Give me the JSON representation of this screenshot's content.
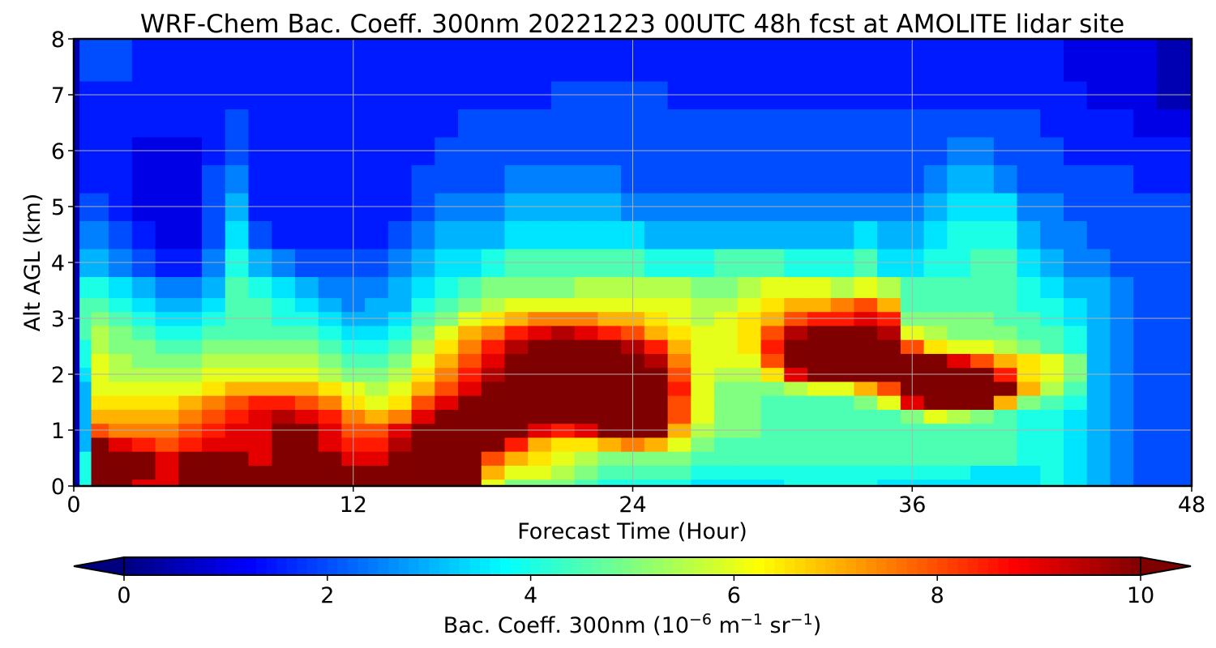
{
  "chart_data": {
    "type": "heatmap",
    "title": "WRF-Chem Bac. Coeff. 300nm  20221223 00UTC 48h fcst at AMOLITE lidar site",
    "xlabel": "Forecast Time (Hour)",
    "ylabel": "Alt AGL (km)",
    "xlim": [
      0,
      48
    ],
    "ylim": [
      0,
      8
    ],
    "xticks": [
      "0",
      "12",
      "24",
      "36",
      "48"
    ],
    "yticks": [
      "0",
      "1",
      "2",
      "3",
      "4",
      "5",
      "6",
      "7",
      "8"
    ],
    "grid": true,
    "colormap": "jet",
    "colorbar": {
      "orientation": "horizontal",
      "position": "bottom",
      "range": [
        0,
        10
      ],
      "extend": "both",
      "ticks": [
        "0",
        "2",
        "4",
        "6",
        "8",
        "10"
      ],
      "label_prefix": "Bac. Coeff. 300nm  (10",
      "label_exp1": "−6",
      "label_mid": " m",
      "label_exp2": "−1",
      "label_mid2": " sr",
      "label_exp3": "−1",
      "label_suffix": ")",
      "extend_low_color": "#00007f",
      "extend_high_color": "#7f0000"
    },
    "x": [
      0,
      0.5,
      1,
      2,
      3,
      4,
      5,
      6,
      7,
      8,
      9,
      10,
      11,
      12,
      13,
      14,
      15,
      16,
      17,
      18,
      19,
      20,
      21,
      22,
      23,
      24,
      25,
      26,
      27,
      28,
      29,
      30,
      31,
      32,
      33,
      34,
      35,
      36,
      37,
      38,
      39,
      40,
      41,
      42,
      43,
      44,
      45,
      46,
      47,
      48
    ],
    "y": [
      0,
      0.25,
      0.5,
      0.75,
      1,
      1.25,
      1.5,
      1.75,
      2,
      2.25,
      2.5,
      2.75,
      3,
      3.25,
      3.5,
      4,
      4.5,
      5,
      5.5,
      6,
      6.5,
      7,
      7.5,
      8
    ],
    "z": [
      [
        0.5,
        4,
        11,
        10,
        9,
        9,
        11,
        11,
        10,
        10,
        10,
        10,
        11,
        11,
        11,
        10,
        10,
        11,
        11,
        6,
        5,
        5,
        5,
        4.5,
        4,
        4,
        4,
        4,
        3.5,
        3.5,
        3.5,
        3.5,
        4,
        4,
        4,
        4,
        3.5,
        3.5,
        3.5,
        3.5,
        3.5,
        3.5,
        3.5,
        4,
        3.5,
        3,
        2.5,
        2,
        2,
        2
      ],
      [
        0.5,
        4,
        11,
        11,
        10,
        9,
        11,
        11,
        10,
        10,
        10,
        10,
        11,
        10,
        10,
        10,
        11,
        11,
        11,
        7,
        6,
        6,
        5.5,
        5,
        4.5,
        4.5,
        4.5,
        4.5,
        4,
        4,
        4,
        4,
        4,
        4,
        4,
        4,
        4,
        4,
        4,
        4,
        3.5,
        3.5,
        3.5,
        4,
        3.5,
        3,
        2.5,
        2,
        2,
        2
      ],
      [
        0.5,
        4,
        11,
        10,
        10,
        9,
        10,
        11,
        10,
        9,
        10,
        10,
        10,
        9,
        9,
        10,
        11,
        11,
        11,
        8,
        7,
        6.5,
        6,
        5.5,
        5,
        5,
        5,
        5,
        4.5,
        4.5,
        4.5,
        4.5,
        4.5,
        4.5,
        4.5,
        4.5,
        4.5,
        4.5,
        4.5,
        4.5,
        4.5,
        4.5,
        4,
        4,
        3.5,
        3,
        2.5,
        2,
        2,
        2
      ],
      [
        0.5,
        3,
        10,
        9,
        8.5,
        8,
        8.5,
        9,
        9,
        9,
        10,
        10,
        9,
        8.5,
        8.5,
        9.5,
        11,
        11,
        11,
        10,
        8.5,
        7,
        6.5,
        6.5,
        7,
        7.5,
        7,
        6,
        5,
        4.5,
        4.5,
        4.5,
        4.5,
        4.5,
        4.5,
        4.5,
        4.5,
        4.5,
        4.5,
        4.5,
        4.5,
        4.5,
        4,
        4,
        3.5,
        3,
        2.5,
        2,
        2,
        2
      ],
      [
        0.5,
        3,
        8,
        7.5,
        7.5,
        7.5,
        8,
        8.5,
        9,
        9,
        10,
        10,
        9,
        8,
        8,
        9,
        11,
        11,
        11,
        11,
        10,
        9,
        8.5,
        9,
        11,
        11,
        10,
        7,
        5.5,
        5,
        5,
        4.5,
        4.5,
        4.5,
        4.5,
        4.5,
        4.5,
        4.5,
        4.5,
        4.5,
        4.5,
        4.5,
        4,
        4,
        3.5,
        3,
        2.5,
        2,
        2,
        2
      ],
      [
        0.5,
        3,
        7,
        7,
        7,
        7,
        7.5,
        8,
        8.5,
        9,
        9.5,
        9,
        8.5,
        7.5,
        7,
        7.5,
        9,
        10,
        11,
        11,
        11,
        11,
        11,
        11,
        11,
        11,
        11,
        8,
        6,
        5,
        5,
        4.5,
        4.5,
        4.5,
        4.5,
        4.5,
        4.5,
        5,
        6,
        5.5,
        5,
        4.5,
        4,
        4,
        3.5,
        3,
        2.5,
        2,
        2,
        2
      ],
      [
        0.5,
        3,
        6.5,
        6.5,
        6.5,
        6.5,
        7,
        7.5,
        8,
        8.5,
        8.5,
        8,
        7.5,
        6.5,
        6,
        6.5,
        8,
        9,
        10,
        11,
        11,
        11,
        11,
        11,
        11,
        11,
        11,
        8,
        6,
        5,
        5,
        4.5,
        4.5,
        4.5,
        4.5,
        5,
        6,
        9,
        10,
        10,
        10,
        7,
        5,
        4.5,
        4,
        3,
        2.5,
        2,
        2,
        2
      ],
      [
        0.5,
        3,
        6,
        6,
        6,
        6,
        6,
        6.5,
        7,
        7,
        7,
        7,
        6.5,
        6,
        5.5,
        6,
        7,
        8,
        9,
        10,
        11,
        11,
        11,
        11,
        11,
        11,
        11,
        8.5,
        6,
        5,
        5,
        5,
        5.5,
        6,
        6,
        7,
        8,
        11,
        11,
        11,
        11,
        10,
        7,
        5.5,
        4.5,
        3,
        2.5,
        2,
        2,
        2
      ],
      [
        0.5,
        3.5,
        6,
        5.5,
        5.5,
        5.5,
        5.5,
        6,
        6,
        6,
        6,
        6,
        5.5,
        5,
        5,
        5.5,
        6.5,
        7.5,
        8.5,
        9.5,
        10.5,
        11,
        11,
        11,
        11,
        11,
        10,
        8,
        6,
        5.5,
        5.5,
        6.5,
        9,
        10,
        11,
        11,
        11,
        11,
        11,
        11,
        10.5,
        8.5,
        6.5,
        6,
        5,
        3,
        2.5,
        2,
        2,
        2
      ],
      [
        0.5,
        4,
        6,
        5.5,
        5,
        5,
        5,
        5.5,
        5.5,
        5.5,
        5.5,
        5.5,
        5,
        4.5,
        4.5,
        5,
        6,
        7,
        8,
        9,
        10,
        10.5,
        11,
        11,
        11,
        11,
        9.5,
        7.5,
        6,
        6,
        6,
        8,
        10,
        11,
        11,
        11,
        11,
        11,
        10,
        9,
        8,
        7,
        6.5,
        6,
        5,
        3,
        2.5,
        2,
        2,
        2
      ],
      [
        0.5,
        4,
        5.5,
        5,
        5,
        4.5,
        4.5,
        5,
        5,
        5,
        5,
        5,
        4.5,
        4,
        4,
        4.5,
        5.5,
        6.5,
        7.5,
        8.5,
        9.5,
        10,
        10.5,
        10.5,
        10,
        9.5,
        8.5,
        7,
        6,
        6,
        6.5,
        8.5,
        10,
        11,
        11,
        11,
        10.5,
        8,
        6.5,
        6,
        6,
        5.5,
        5,
        4.5,
        4,
        3,
        2.5,
        2,
        2,
        2
      ],
      [
        0.5,
        4.5,
        5.5,
        5,
        4.5,
        4,
        4,
        4.5,
        4.5,
        4.5,
        4.5,
        4.5,
        4,
        3.5,
        3.5,
        4,
        5,
        6,
        7,
        7.5,
        8.5,
        9,
        9.5,
        9,
        8.5,
        8,
        7,
        6.5,
        6,
        6,
        6.5,
        8,
        9.5,
        10,
        10,
        10,
        9.5,
        6,
        5.5,
        5,
        5,
        5,
        4.5,
        4.5,
        4,
        3,
        2.5,
        2,
        2,
        2
      ],
      [
        0.5,
        4.5,
        5,
        4.5,
        4,
        3.5,
        3.5,
        4,
        4.5,
        4.5,
        4,
        4,
        3.5,
        3,
        3,
        3.5,
        4.5,
        5,
        6,
        6.5,
        7,
        7.5,
        7.5,
        7.5,
        7,
        7,
        6.5,
        6,
        5.5,
        6,
        6.5,
        7,
        8,
        8.5,
        8.5,
        9,
        8.5,
        5,
        5,
        5,
        5,
        4.5,
        4.5,
        4,
        3.5,
        3,
        2.5,
        2,
        2,
        2
      ],
      [
        0.5,
        4.5,
        4.5,
        4,
        3.5,
        3,
        3,
        3.5,
        4.5,
        4.5,
        4,
        3.5,
        3,
        2.5,
        3,
        3,
        4,
        4.5,
        5,
        5.5,
        6,
        6,
        6,
        6,
        6,
        6,
        6,
        6,
        5.5,
        5.5,
        6,
        6.5,
        7,
        7,
        7.5,
        8,
        7,
        4.5,
        4.5,
        4.5,
        4.5,
        4.5,
        4,
        4,
        3.5,
        3,
        2.5,
        2,
        2,
        2
      ],
      [
        0.5,
        4,
        4,
        3.5,
        3,
        2.5,
        2.5,
        3,
        4.5,
        4,
        3.5,
        3,
        2.5,
        2.5,
        2.5,
        3,
        3.5,
        4,
        4.5,
        5,
        5,
        5,
        5,
        5.5,
        5.5,
        5.5,
        5.5,
        5.5,
        5,
        5,
        5.5,
        6,
        6,
        6,
        5.5,
        6,
        5.5,
        4.5,
        4.5,
        4.5,
        4.5,
        4.5,
        4,
        3.5,
        3,
        3,
        2.5,
        2,
        2,
        2
      ],
      [
        0.5,
        3,
        3,
        2.5,
        2,
        1.5,
        1.5,
        2.5,
        4,
        3,
        2.5,
        2,
        2,
        2,
        2,
        2.5,
        3,
        3.5,
        3.5,
        4,
        4.5,
        4.5,
        4.5,
        4.5,
        4.5,
        4.5,
        4,
        4,
        4,
        4.5,
        4.5,
        4.5,
        4,
        4,
        4,
        4.5,
        3.5,
        3.5,
        4,
        4,
        4.5,
        4.5,
        3.5,
        3,
        2.5,
        2.5,
        2,
        2,
        2,
        2
      ],
      [
        0.5,
        2.5,
        2.5,
        2,
        1.5,
        1,
        1,
        2,
        3.5,
        2,
        1.5,
        1.5,
        1.5,
        1.5,
        1.5,
        2,
        2.5,
        3,
        3,
        3,
        3.5,
        3.5,
        3.5,
        3.5,
        3.5,
        3.5,
        3,
        3,
        3,
        3,
        3,
        3,
        3,
        3,
        3,
        3.5,
        3,
        3,
        3.5,
        4,
        4,
        4,
        3,
        2.5,
        2.5,
        2,
        2,
        2,
        2,
        2
      ],
      [
        0.5,
        2,
        2,
        1.5,
        1,
        1,
        1,
        2,
        3,
        1.5,
        1.5,
        1.5,
        1.5,
        1.5,
        1.5,
        1.5,
        2,
        2.5,
        2.5,
        2.5,
        3,
        3,
        3,
        3,
        3,
        2.5,
        2.5,
        2.5,
        2.5,
        2.5,
        2.5,
        2.5,
        2.5,
        2.5,
        2.5,
        2.5,
        2.5,
        2.5,
        3,
        3.5,
        3.5,
        3.5,
        2.5,
        2.5,
        2,
        2,
        2,
        2,
        2,
        2
      ],
      [
        0.5,
        1.5,
        1.5,
        1.5,
        1,
        1,
        1,
        2,
        2.5,
        1.5,
        1.5,
        1.5,
        1.5,
        1.5,
        1.5,
        1.5,
        2,
        2,
        2,
        2,
        2.5,
        2.5,
        2.5,
        2.5,
        2.5,
        2,
        2,
        2,
        2,
        2,
        2,
        2,
        2,
        2,
        2,
        2,
        2,
        2,
        2.5,
        3,
        3,
        2.5,
        2,
        2,
        2,
        2,
        2,
        1.5,
        1.5,
        1.5
      ],
      [
        0.5,
        1.5,
        1.5,
        1.5,
        1,
        1,
        1,
        1.5,
        2,
        1.5,
        1.5,
        1.5,
        1.5,
        1.5,
        1.5,
        1.5,
        1.5,
        2,
        2,
        2,
        2,
        2,
        2,
        2,
        2,
        2,
        2,
        2,
        2,
        2,
        2,
        2,
        2,
        2,
        2,
        2,
        2,
        2,
        2,
        2.5,
        2.5,
        2,
        2,
        2,
        1.5,
        1.5,
        1.5,
        1.5,
        1.5,
        1.5
      ],
      [
        0.5,
        1.5,
        1.5,
        1.5,
        1.5,
        1.5,
        1.5,
        1.5,
        2,
        1.5,
        1.5,
        1.5,
        1.5,
        1.5,
        1.5,
        1.5,
        1.5,
        1.5,
        2,
        2,
        2,
        2,
        2,
        2,
        2,
        2,
        2,
        2,
        2,
        2,
        2,
        2,
        2,
        2,
        2,
        2,
        2,
        2,
        2,
        2,
        2,
        2,
        2,
        1.5,
        1.5,
        1.5,
        1.5,
        1,
        1,
        1
      ],
      [
        0.5,
        1.5,
        1.5,
        1.5,
        1.5,
        1.5,
        1.5,
        1.5,
        1.5,
        1.5,
        1.5,
        1.5,
        1.5,
        1.5,
        1.5,
        1.5,
        1.5,
        1.5,
        1.5,
        1.5,
        1.5,
        1.5,
        2,
        2,
        2,
        2,
        2,
        1.5,
        1.5,
        1.5,
        1.5,
        1.5,
        1.5,
        1.5,
        1.5,
        1.5,
        1.5,
        1.5,
        1.5,
        1.5,
        1.5,
        1.5,
        1.5,
        1.5,
        1.5,
        1,
        1,
        1,
        0.5,
        0.5
      ],
      [
        0.5,
        2,
        2,
        2,
        1.5,
        1.5,
        1.5,
        1.5,
        1.5,
        1.5,
        1.5,
        1.5,
        1.5,
        1.5,
        1.5,
        1.5,
        1.5,
        1.5,
        1.5,
        1.5,
        1.5,
        1.5,
        1.5,
        1.5,
        1.5,
        1.5,
        1.5,
        1.5,
        1.5,
        1.5,
        1.5,
        1.5,
        1.5,
        1.5,
        1.5,
        1.5,
        1.5,
        1.5,
        1.5,
        1.5,
        1.5,
        1.5,
        1.5,
        1.5,
        1,
        1,
        1,
        1,
        0.5,
        0.5
      ],
      [
        0.5,
        2,
        2,
        2,
        1.5,
        1.5,
        1.5,
        1.5,
        1.5,
        1.5,
        1.5,
        1.5,
        1.5,
        1.5,
        1.5,
        1.5,
        1.5,
        1.5,
        1.5,
        1.5,
        1.5,
        1.5,
        1.5,
        1.5,
        1.5,
        1.5,
        1.5,
        1.5,
        1.5,
        1.5,
        1.5,
        1.5,
        1.5,
        1.5,
        1.5,
        1.5,
        1.5,
        1.5,
        1.5,
        1.5,
        1.5,
        1.5,
        1.5,
        1.5,
        1,
        1,
        1,
        1,
        0.5,
        0.5
      ]
    ]
  }
}
